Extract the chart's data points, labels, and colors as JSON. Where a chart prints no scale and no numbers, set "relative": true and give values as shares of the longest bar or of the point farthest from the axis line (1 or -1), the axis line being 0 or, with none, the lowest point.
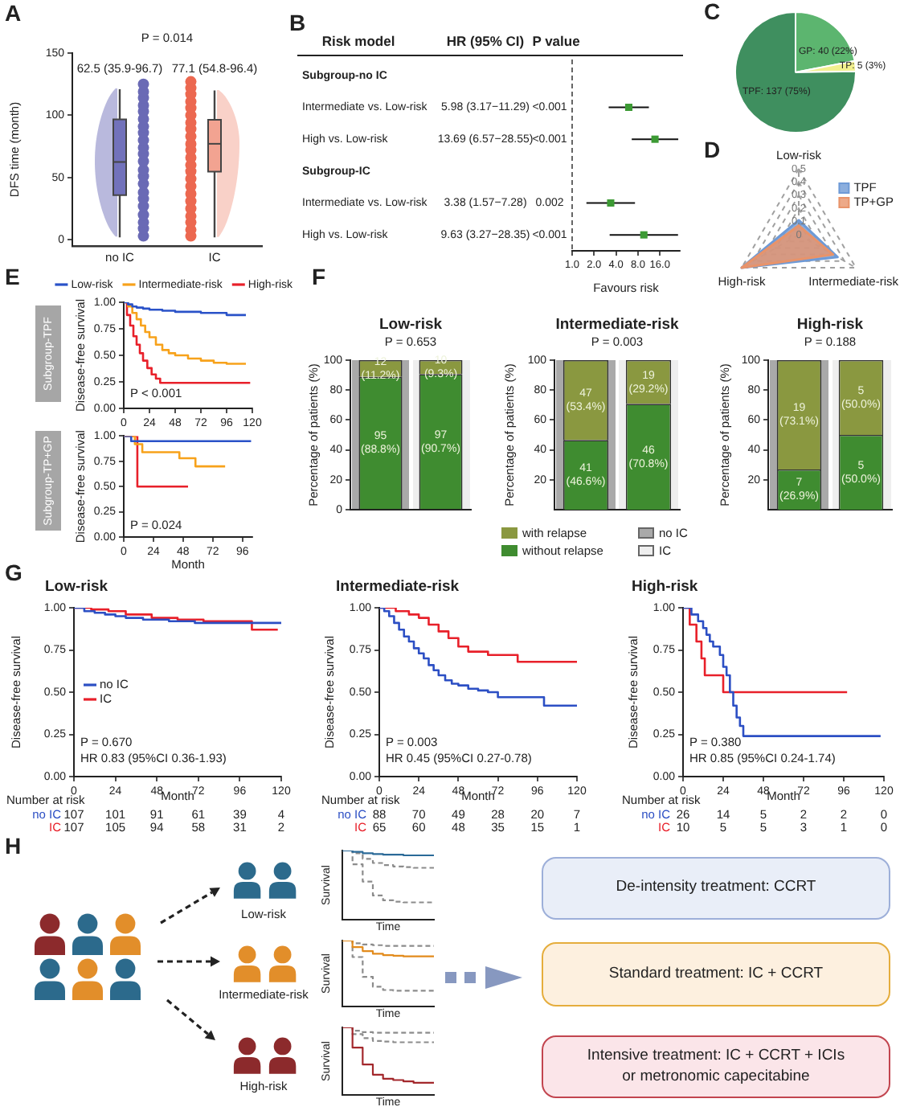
{
  "chart_data": [
    {
      "type": "box",
      "categories": [
        "no IC",
        "IC"
      ],
      "ylabel": "DFS time (month)",
      "ylim": [
        -5,
        150
      ],
      "yticks": [
        0,
        50,
        100,
        150
      ],
      "boxes": [
        {
          "low": 2,
          "q1": 35.9,
          "median": 62.5,
          "q3": 96.7,
          "high": 121
        },
        {
          "low": 2,
          "q1": 54.8,
          "median": 77.1,
          "q3": 96.4,
          "high": 120
        }
      ],
      "colors": [
        "#7272bb",
        "#f2a391"
      ],
      "series": [
        {
          "type": "scatter",
          "color": "#6a6ab5",
          "x": [
            "no IC",
            "no IC",
            "no IC",
            "no IC",
            "no IC",
            "no IC",
            "no IC",
            "no IC",
            "no IC",
            "no IC",
            "no IC",
            "no IC",
            "no IC",
            "no IC",
            "no IC",
            "no IC",
            "no IC",
            "no IC",
            "no IC",
            "no IC",
            "no IC",
            "no IC"
          ],
          "values": [
            3,
            9,
            14,
            20,
            27,
            33,
            38,
            45,
            51,
            56,
            63,
            69,
            74,
            80,
            86,
            91,
            97,
            103,
            108,
            114,
            119,
            125
          ]
        },
        {
          "type": "scatter",
          "color": "#ec6850",
          "x": [
            "IC",
            "IC",
            "IC",
            "IC",
            "IC",
            "IC",
            "IC",
            "IC",
            "IC",
            "IC",
            "IC",
            "IC",
            "IC",
            "IC",
            "IC",
            "IC",
            "IC",
            "IC",
            "IC",
            "IC",
            "IC",
            "IC",
            "IC"
          ],
          "values": [
            3,
            8,
            14,
            19,
            25,
            31,
            37,
            43,
            49,
            55,
            60,
            66,
            72,
            77,
            83,
            89,
            94,
            100,
            106,
            111,
            117,
            122,
            127
          ]
        }
      ],
      "annotations": [
        "A",
        "P = 0.014",
        "62.5 (35.9-96.7)",
        "77.1 (54.8-96.4)"
      ]
    },
    {
      "type": "scatter",
      "orientation": "horizontal",
      "log": "x",
      "marker": "square",
      "ylabel": "Risk model",
      "xlabel": "Favours risk",
      "categories": [
        null,
        null,
        null,
        null,
        null,
        null
      ],
      "series": [
        {
          "color": "#3c9a34",
          "values": [
            null,
            5.98,
            13.69,
            null,
            3.38,
            9.63
          ],
          "errors": [
            null,
            [
              3.17,
              11.29
            ],
            [
              6.57,
              28.55
            ],
            null,
            [
              1.57,
              7.28
            ],
            [
              3.27,
              28.35
            ]
          ],
          "value_labels": [
            null,
            "5.98 (3.17−11.29)",
            "13.69 (6.57−28.55)",
            null,
            "3.38 (1.57−7.28)",
            "9.63 (3.27−28.35)"
          ]
        }
      ],
      "xlim": [
        1,
        30
      ],
      "xticks": [
        {
          "value": 1,
          "label": "1.0"
        },
        {
          "value": 2,
          "label": "2.0"
        },
        {
          "value": 4,
          "label": "4.0"
        },
        {
          "value": 8,
          "label": "8.0"
        },
        {
          "value": 16,
          "label": "16.0"
        }
      ],
      "ref_lines": [
        {
          "axis": "x",
          "value": 1,
          "line_style": "dashed"
        }
      ],
      "annotations": [
        "B",
        "HR (95% CI)",
        "P value",
        "<0.001",
        "<0.001",
        "0.002",
        "<0.001",
        "Subgroup-no IC",
        "Intermediate vs. Low-risk",
        "High vs. Low-risk",
        "Subgroup-IC",
        "Intermediate vs. Low-risk",
        "High vs. Low-risk"
      ]
    },
    {
      "type": "pie",
      "categories": [
        "GP",
        "TP",
        "TPF"
      ],
      "values": [
        40,
        5,
        137
      ],
      "colors": [
        "#5cb56f",
        "#f2f08e",
        "#3f8f5f"
      ],
      "value_labels": [
        "40 (22%)",
        "5 (3%)",
        "137 (75%)"
      ],
      "annotations": [
        "C"
      ]
    },
    {
      "type": "radar",
      "categories": [
        "Low-risk",
        "Intermediate-risk",
        "High-risk"
      ],
      "series": [
        {
          "name": "TPF",
          "color": "#6e9ad6",
          "values": [
            0.11,
            0.34,
            0.5
          ]
        },
        {
          "name": "TP+GP",
          "color": "#e8936a",
          "values": [
            0.07,
            0.3,
            0.5
          ]
        }
      ],
      "ylim": [
        0,
        0.5
      ],
      "yticks": [
        0,
        0.1,
        0.2,
        0.3,
        0.4,
        0.5
      ],
      "grid": true,
      "legend": "top right",
      "annotations": [
        "D"
      ]
    },
    {
      "type": "step",
      "title": "Subgroup-TPF",
      "ylabel": "Disease-free survival",
      "xlim": [
        0,
        120
      ],
      "xticks": [
        0,
        24,
        48,
        72,
        96,
        120
      ],
      "ylim": [
        0,
        1
      ],
      "yticks": [
        {
          "value": 0,
          "label": "0.00"
        },
        0.25,
        {
          "value": 0.5,
          "label": "0.50"
        },
        0.75,
        {
          "value": 1,
          "label": "1.00"
        }
      ],
      "legend": "top",
      "series": [
        {
          "name": "Low-risk",
          "color": "#2a52c8",
          "x": [
            0,
            4,
            8,
            12,
            18,
            24,
            36,
            48,
            72,
            96,
            114
          ],
          "values": [
            1,
            0.98,
            0.96,
            0.95,
            0.94,
            0.93,
            0.92,
            0.91,
            0.9,
            0.88,
            0.88
          ]
        },
        {
          "name": "Intermediate-risk",
          "color": "#f7a21b",
          "x": [
            0,
            4,
            8,
            12,
            16,
            20,
            24,
            30,
            36,
            42,
            48,
            60,
            72,
            84,
            96,
            114
          ],
          "values": [
            1,
            0.96,
            0.9,
            0.84,
            0.78,
            0.72,
            0.67,
            0.6,
            0.55,
            0.52,
            0.5,
            0.47,
            0.45,
            0.43,
            0.42,
            0.42
          ]
        },
        {
          "name": "High-risk",
          "color": "#e8202a",
          "x": [
            0,
            3,
            6,
            9,
            12,
            15,
            18,
            22,
            26,
            30,
            34,
            118
          ],
          "values": [
            1,
            0.88,
            0.78,
            0.68,
            0.6,
            0.52,
            0.45,
            0.38,
            0.32,
            0.28,
            0.24,
            0.24
          ]
        }
      ],
      "annotations": [
        "E",
        "P < 0.001"
      ]
    },
    {
      "type": "step",
      "title": "Subgroup-TP+GP",
      "xlabel": "Month",
      "ylabel": "Disease-free survival",
      "xlim": [
        0,
        104
      ],
      "xticks": [
        0,
        24,
        48,
        72,
        96
      ],
      "ylim": [
        0,
        1
      ],
      "yticks": [
        {
          "value": 0,
          "label": "0.00"
        },
        0.25,
        {
          "value": 0.5,
          "label": "0.50"
        },
        0.75,
        {
          "value": 1,
          "label": "1.00"
        }
      ],
      "series": [
        {
          "color": "#2a52c8",
          "x": [
            0,
            6,
            30,
            60,
            103
          ],
          "values": [
            1,
            0.95,
            0.95,
            0.95,
            0.95
          ]
        },
        {
          "color": "#f7a21b",
          "x": [
            0,
            9,
            15,
            45,
            58,
            82
          ],
          "values": [
            1,
            0.92,
            0.84,
            0.78,
            0.7,
            0.7
          ]
        },
        {
          "color": "#e8202a",
          "x": [
            0,
            11,
            30,
            52
          ],
          "values": [
            1,
            0.5,
            0.5,
            0.5
          ]
        }
      ],
      "annotations": [
        "P = 0.024"
      ]
    },
    {
      "type": "bar",
      "stacked": true,
      "title": "Low-risk",
      "subtitle": "P = 0.653",
      "ylabel": "Percentage of patients (%)",
      "categories": [
        null,
        null
      ],
      "ylim": [
        0,
        100
      ],
      "yticks": [
        0,
        20,
        40,
        60,
        80,
        100
      ],
      "series": [
        {
          "color": "#3f8c30",
          "values": [
            88.8,
            90.7
          ],
          "value_labels": [
            "95 (88.8%)",
            "97 (90.7%)"
          ]
        },
        {
          "color": "#8a9840",
          "values": [
            11.2,
            9.3
          ],
          "value_labels": [
            "12 (11.2%)",
            "10 (9.3%)"
          ]
        }
      ],
      "annotations": [
        "F"
      ]
    },
    {
      "type": "bar",
      "stacked": true,
      "title": "Intermediate-risk",
      "subtitle": "P = 0.003",
      "ylabel": "Percentage of patients (%)",
      "categories": [
        null,
        null
      ],
      "ylim": [
        0,
        100
      ],
      "yticks": [
        20,
        40,
        60,
        80,
        100
      ],
      "legend": "bottom",
      "series": [
        {
          "name": "without relapse",
          "color": "#3f8c30",
          "values": [
            46.6,
            70.8
          ],
          "value_labels": [
            "41 (46.6%)",
            "46 (70.8%)"
          ]
        },
        {
          "name": "with relapse",
          "color": "#8a9840",
          "values": [
            53.4,
            29.2
          ],
          "value_labels": [
            "47 (53.4%)",
            "19 (29.2%)"
          ]
        }
      ],
      "annotations": [
        "no IC",
        "IC"
      ]
    },
    {
      "type": "bar",
      "stacked": true,
      "title": "High-risk",
      "subtitle": "P = 0.188",
      "ylabel": "Percentage of patients (%)",
      "categories": [
        null,
        null
      ],
      "ylim": [
        0,
        100
      ],
      "yticks": [
        20,
        40,
        60,
        80,
        100
      ],
      "series": [
        {
          "color": "#3f8c30",
          "values": [
            26.9,
            50.0
          ],
          "value_labels": [
            "7 (26.9%)",
            "5 (50.0%)"
          ]
        },
        {
          "color": "#8a9840",
          "values": [
            73.1,
            50.0
          ],
          "value_labels": [
            "19 (73.1%)",
            "5 (50.0%)"
          ]
        }
      ]
    },
    {
      "type": "step",
      "title": "Low-risk",
      "xlabel": "Month",
      "ylabel": "Disease-free survival",
      "xlim": [
        0,
        120
      ],
      "xticks": [
        0,
        24,
        48,
        72,
        96,
        120
      ],
      "ylim": [
        0,
        1
      ],
      "yticks": [
        {
          "value": 0,
          "label": "0.00"
        },
        0.25,
        {
          "value": 0.5,
          "label": "0.50"
        },
        0.75,
        {
          "value": 1,
          "label": "1.00"
        }
      ],
      "legend": "left",
      "series": [
        {
          "name": "no IC",
          "color": "#2c4fc4",
          "x": [
            0,
            6,
            12,
            18,
            24,
            30,
            40,
            55,
            70,
            90,
            120
          ],
          "values": [
            1,
            0.98,
            0.97,
            0.96,
            0.95,
            0.94,
            0.93,
            0.92,
            0.91,
            0.91,
            0.91
          ]
        },
        {
          "name": "IC",
          "color": "#e8202a",
          "x": [
            0,
            10,
            20,
            30,
            45,
            60,
            75,
            103,
            118
          ],
          "values": [
            1,
            0.99,
            0.98,
            0.96,
            0.94,
            0.93,
            0.92,
            0.87,
            0.87
          ]
        }
      ],
      "annotations": [
        "G",
        "P = 0.670",
        "HR 0.83 (95%CI 0.36-1.93)",
        "Number at risk",
        "107",
        "101",
        "91",
        "61",
        "39",
        "4",
        "107",
        "105",
        "94",
        "58",
        "31",
        "2"
      ]
    },
    {
      "type": "step",
      "title": "Intermediate-risk",
      "xlabel": "Month",
      "ylabel": "Disease-free survival",
      "xlim": [
        0,
        120
      ],
      "xticks": [
        0,
        24,
        48,
        72,
        96,
        120
      ],
      "ylim": [
        0,
        1
      ],
      "yticks": [
        {
          "value": 0,
          "label": "0.00"
        },
        0.25,
        {
          "value": 0.5,
          "label": "0.50"
        },
        0.75,
        {
          "value": 1,
          "label": "1.00"
        }
      ],
      "series": [
        {
          "name": "no IC",
          "color": "#2c4fc4",
          "x": [
            0,
            3,
            6,
            9,
            12,
            15,
            18,
            21,
            24,
            27,
            30,
            33,
            36,
            40,
            44,
            48,
            54,
            60,
            66,
            72,
            96,
            100,
            120
          ],
          "values": [
            1,
            0.98,
            0.95,
            0.91,
            0.87,
            0.83,
            0.8,
            0.76,
            0.73,
            0.7,
            0.66,
            0.63,
            0.6,
            0.57,
            0.55,
            0.54,
            0.52,
            0.51,
            0.5,
            0.47,
            0.47,
            0.42,
            0.42
          ]
        },
        {
          "name": "IC",
          "color": "#e8202a",
          "x": [
            0,
            10,
            18,
            24,
            30,
            36,
            42,
            48,
            54,
            66,
            84,
            120
          ],
          "values": [
            1,
            0.98,
            0.96,
            0.94,
            0.9,
            0.86,
            0.82,
            0.77,
            0.74,
            0.72,
            0.68,
            0.68
          ]
        }
      ],
      "annotations": [
        "P = 0.003",
        "HR 0.45 (95%CI 0.27-0.78)",
        "Number at risk",
        "88",
        "70",
        "49",
        "28",
        "20",
        "7",
        "65",
        "60",
        "48",
        "35",
        "15",
        "1"
      ]
    },
    {
      "type": "step",
      "title": "High-risk",
      "xlabel": "Month",
      "ylabel": "Disease-free survival",
      "xlim": [
        0,
        120
      ],
      "xticks": [
        0,
        24,
        48,
        72,
        96,
        120
      ],
      "ylim": [
        0,
        1
      ],
      "yticks": [
        {
          "value": 0,
          "label": "0.00"
        },
        0.25,
        {
          "value": 0.5,
          "label": "0.50"
        },
        0.75,
        {
          "value": 1,
          "label": "1.00"
        }
      ],
      "series": [
        {
          "name": "no IC",
          "color": "#2c4fc4",
          "x": [
            0,
            5,
            9,
            12,
            14,
            16,
            18,
            22,
            24,
            26,
            28,
            30,
            32,
            34,
            36,
            118
          ],
          "values": [
            1,
            0.96,
            0.92,
            0.88,
            0.84,
            0.8,
            0.77,
            0.72,
            0.65,
            0.6,
            0.5,
            0.42,
            0.35,
            0.3,
            0.24,
            0.24
          ]
        },
        {
          "name": "IC",
          "color": "#e8202a",
          "x": [
            0,
            4,
            8,
            11,
            13,
            24,
            98
          ],
          "values": [
            1,
            0.9,
            0.8,
            0.7,
            0.6,
            0.5,
            0.5
          ]
        }
      ],
      "annotations": [
        "P = 0.380",
        "HR 0.85 (95%CI 0.24-1.74)",
        "Number at risk",
        "26",
        "14",
        "5",
        "2",
        "2",
        "0",
        "10",
        "5",
        "5",
        "3",
        "1",
        "0"
      ]
    },
    {
      "type": "step",
      "relative": true,
      "xlabel": "Time",
      "ylabel": "Survival",
      "categories": [
        null,
        null,
        null,
        null,
        null,
        null,
        null,
        null,
        null,
        null
      ],
      "series": [
        {
          "color": "#2b6a98",
          "values": [
            1,
            0.98,
            0.96,
            0.95,
            0.94,
            0.94,
            0.93,
            0.93,
            0.93,
            0.93
          ]
        },
        {
          "color": "#8c8c8c",
          "line_style": "dashed",
          "values": [
            1,
            0.96,
            0.88,
            0.82,
            0.79,
            0.77,
            0.76,
            0.75,
            0.75,
            0.75
          ]
        },
        {
          "color": "#8c8c8c",
          "line_style": "dashed",
          "values": [
            1,
            0.8,
            0.55,
            0.35,
            0.28,
            0.26,
            0.25,
            0.25,
            0.25,
            0.25
          ]
        }
      ]
    },
    {
      "type": "step",
      "relative": true,
      "xlabel": "Time",
      "ylabel": "Survival",
      "categories": [
        null,
        null,
        null,
        null,
        null,
        null,
        null,
        null,
        null,
        null
      ],
      "series": [
        {
          "color": "#e28b1c",
          "values": [
            1,
            0.9,
            0.84,
            0.8,
            0.78,
            0.77,
            0.76,
            0.76,
            0.76,
            0.76
          ]
        },
        {
          "color": "#8c8c8c",
          "line_style": "dashed",
          "values": [
            1,
            0.96,
            0.94,
            0.93,
            0.92,
            0.92,
            0.92,
            0.92,
            0.92,
            0.92
          ]
        },
        {
          "color": "#8c8c8c",
          "line_style": "dashed",
          "values": [
            1,
            0.75,
            0.45,
            0.3,
            0.25,
            0.24,
            0.24,
            0.24,
            0.24,
            0.24
          ]
        }
      ]
    },
    {
      "type": "step",
      "relative": true,
      "xlabel": "Time",
      "ylabel": "Survival",
      "categories": [
        null,
        null,
        null,
        null,
        null,
        null,
        null,
        null,
        null,
        null
      ],
      "series": [
        {
          "color": "#a3282c",
          "values": [
            1,
            0.7,
            0.45,
            0.3,
            0.24,
            0.22,
            0.2,
            0.18,
            0.18,
            0.18
          ]
        },
        {
          "color": "#8c8c8c",
          "line_style": "dashed",
          "values": [
            1,
            0.95,
            0.93,
            0.92,
            0.92,
            0.92,
            0.92,
            0.92,
            0.92,
            0.92
          ]
        },
        {
          "color": "#8c8c8c",
          "line_style": "dashed",
          "values": [
            1,
            0.9,
            0.84,
            0.8,
            0.79,
            0.78,
            0.78,
            0.78,
            0.78,
            0.78
          ]
        }
      ]
    },
    {
      "type": "other",
      "annotations": [
        "H",
        "Low-risk",
        "Intermediate-risk",
        "High-risk",
        "De-intensity treatment: CCRT",
        "Standard treatment: IC + CCRT",
        "Intensive treatment: IC + CCRT + ICIs or metronomic capecitabine"
      ]
    }
  ]
}
